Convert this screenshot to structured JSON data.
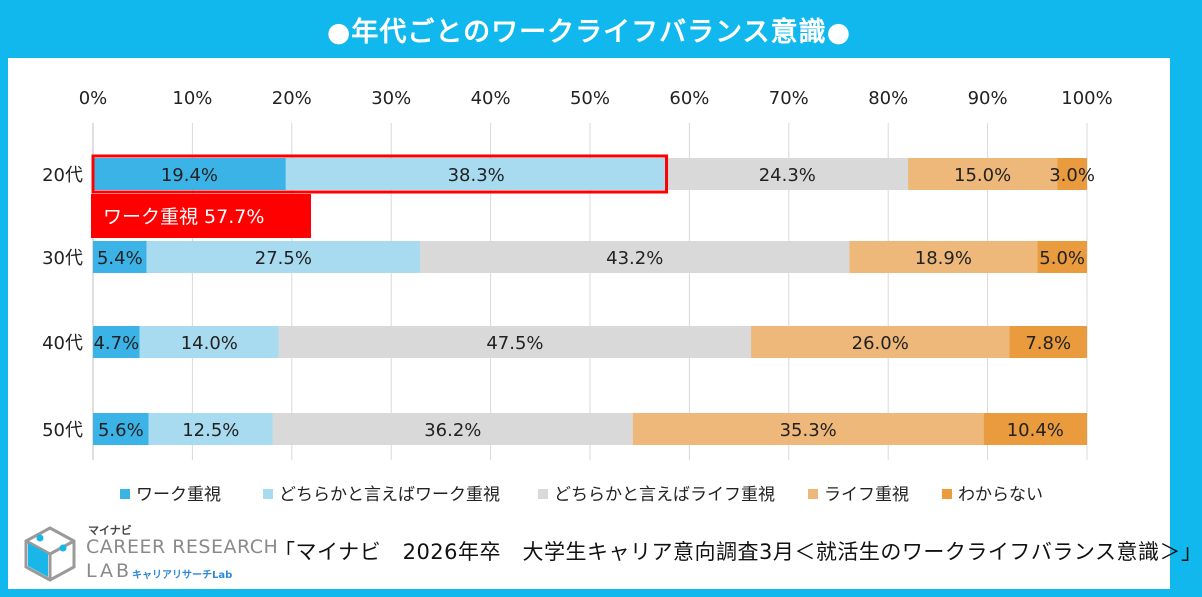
{
  "header": {
    "title": "●年代ごとのワークライフバランス意識●"
  },
  "chart_data": {
    "type": "bar",
    "orientation": "horizontal",
    "stacked": true,
    "percent_axis": true,
    "categories": [
      "20代",
      "30代",
      "40代",
      "50代"
    ],
    "series": [
      {
        "name": "ワーク重視",
        "color": "#3cb3e6",
        "values": [
          19.4,
          5.4,
          4.7,
          5.6
        ]
      },
      {
        "name": "どちらかと言えばワーク重視",
        "color": "#a9dbf0",
        "values": [
          38.3,
          27.5,
          14.0,
          12.5
        ]
      },
      {
        "name": "どちらかと言えばライフ重視",
        "color": "#d9d9d9",
        "values": [
          24.3,
          43.2,
          47.5,
          36.2
        ]
      },
      {
        "name": "ライフ重視",
        "color": "#eeb87a",
        "values": [
          15.0,
          18.9,
          26.0,
          35.3
        ]
      },
      {
        "name": "わからない",
        "color": "#e99b3e",
        "values": [
          3.0,
          5.0,
          7.8,
          10.4
        ]
      }
    ],
    "x_ticks": [
      "0%",
      "10%",
      "20%",
      "30%",
      "40%",
      "50%",
      "60%",
      "70%",
      "80%",
      "90%",
      "100%"
    ],
    "xlim": [
      0,
      100
    ],
    "axis_position": "top",
    "grid": "vertical",
    "legend": "bottom",
    "annotation": {
      "text": "ワーク重視 57.7%",
      "category": "20代",
      "range": [
        0,
        57.7
      ],
      "color": "#ff0000"
    }
  },
  "footer": {
    "logo_brand": "マイナビ",
    "logo_line1": "CAREER RESEARCH",
    "logo_line2": "LAB",
    "logo_sub": "キャリアリサーチLab",
    "source": "「マイナビ　2026年卒　大学生キャリア意向調査3月＜就活生のワークライフバランス意識＞」"
  }
}
